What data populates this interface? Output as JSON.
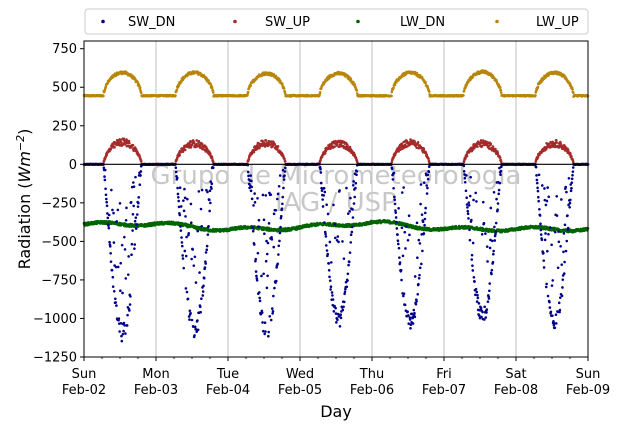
{
  "chart_data": {
    "type": "scatter",
    "xlabel": "Day",
    "ylabel_main": "Radiation (",
    "ylabel_unit_base": "Wm",
    "ylabel_unit_exp": "−2",
    "ylabel_close": ")",
    "ylim": [
      -1250,
      800
    ],
    "yticks": [
      -1250,
      -1000,
      -750,
      -500,
      -250,
      0,
      250,
      500,
      750
    ],
    "ytick_labels": [
      "−1250",
      "−1000",
      "−750",
      "−500",
      "−250",
      "0",
      "250",
      "500",
      "750"
    ],
    "x_days": [
      {
        "day": "Sun",
        "date": "Feb-02"
      },
      {
        "day": "Mon",
        "date": "Feb-03"
      },
      {
        "day": "Tue",
        "date": "Feb-04"
      },
      {
        "day": "Wed",
        "date": "Feb-05"
      },
      {
        "day": "Thu",
        "date": "Feb-06"
      },
      {
        "day": "Fri",
        "date": "Feb-07"
      },
      {
        "day": "Sat",
        "date": "Feb-08"
      },
      {
        "day": "Sun",
        "date": "Feb-09"
      }
    ],
    "grid": "vertical",
    "legend_placement": "top",
    "watermark": [
      "Grupo de Micrometeorologia",
      "IAG / USP"
    ],
    "series": [
      {
        "name": "SW_DN",
        "color": "#00008b",
        "daily_min": [
          -1150,
          -1130,
          -1130,
          -1060,
          -1080,
          -1040,
          -1080
        ],
        "night_value": 0
      },
      {
        "name": "SW_UP",
        "color": "#a52a2a",
        "daily_max": [
          160,
          150,
          155,
          150,
          155,
          150,
          150
        ],
        "night_value": 0
      },
      {
        "name": "LW_DN",
        "color": "#006400",
        "daily_mean": [
          -390,
          -385,
          -425,
          -410,
          -375,
          -420,
          -420
        ]
      },
      {
        "name": "LW_UP",
        "color": "#b8860b",
        "night_value": 445,
        "daily_max": [
          595,
          595,
          590,
          590,
          595,
          600,
          595
        ]
      }
    ],
    "zero_line": 0
  }
}
